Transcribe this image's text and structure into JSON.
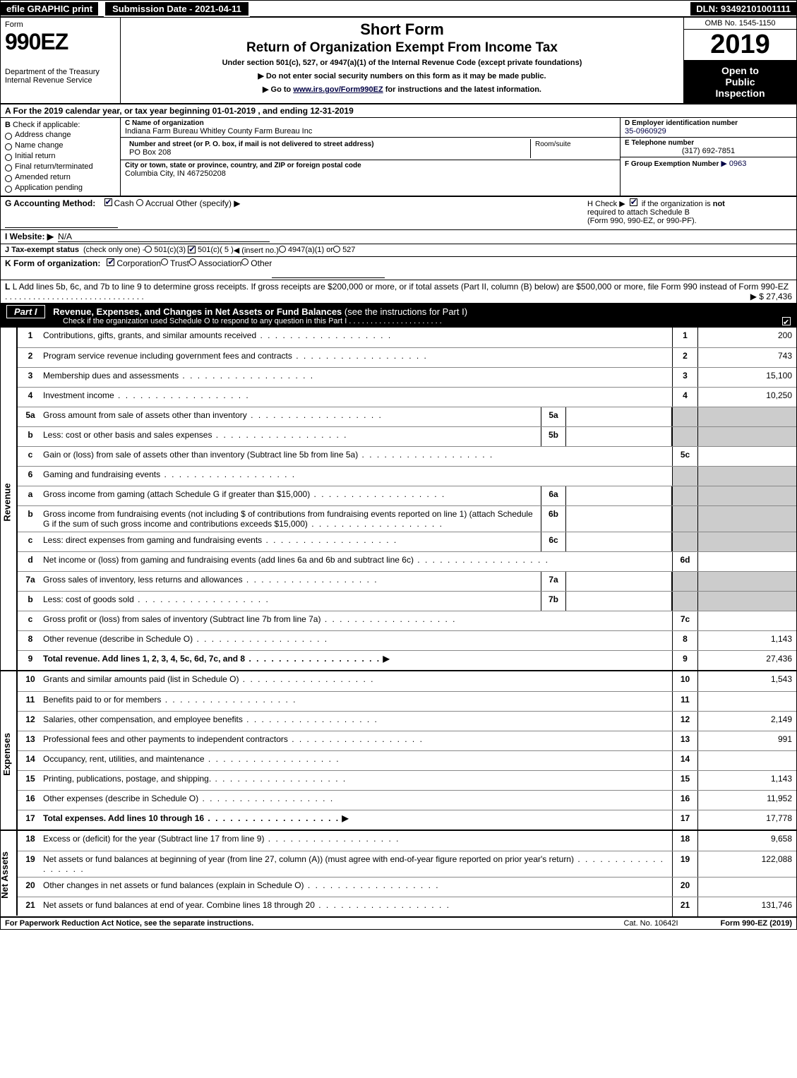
{
  "topbar": {
    "efile": "efile GRAPHIC print",
    "submission_label": "Submission Date - 2021-04-11",
    "dln": "DLN: 93492101001111"
  },
  "header": {
    "form_word": "Form",
    "form_num": "990EZ",
    "dept": "Department of the Treasury",
    "irs": "Internal Revenue Service",
    "short_form": "Short Form",
    "return": "Return of Organization Exempt From Income Tax",
    "under": "Under section 501(c), 527, or 4947(a)(1) of the Internal Revenue Code (except private foundations)",
    "arrow1": "▶ Do not enter social security numbers on this form as it may be made public.",
    "arrow2_prefix": "▶ Go to ",
    "arrow2_link": "www.irs.gov/Form990EZ",
    "arrow2_suffix": " for instructions and the latest information.",
    "omb": "OMB No. 1545-1150",
    "year": "2019",
    "open1": "Open to",
    "open2": "Public",
    "open3": "Inspection"
  },
  "row_a": "A For the 2019 calendar year, or tax year beginning 01-01-2019 , and ending 12-31-2019",
  "col_b": {
    "header": "B",
    "check_if": "Check if applicable:",
    "items": [
      "Address change",
      "Name change",
      "Initial return",
      "Final return/terminated",
      "Amended return",
      "Application pending"
    ]
  },
  "col_c": {
    "name_label": "C Name of organization",
    "name": "Indiana Farm Bureau Whitley County Farm Bureau Inc",
    "addr_label": "Number and street (or P. O. box, if mail is not delivered to street address)",
    "addr": "PO Box 208",
    "room_label": "Room/suite",
    "city_label": "City or town, state or province, country, and ZIP or foreign postal code",
    "city": "Columbia City, IN  467250208"
  },
  "col_d": {
    "ein_label": "D Employer identification number",
    "ein": "35-0960929",
    "tel_label": "E Telephone number",
    "tel": "(317) 692-7851",
    "grp_label": "F Group Exemption Number",
    "grp": "▶ 0963"
  },
  "row_g": {
    "label": "G Accounting Method:",
    "cash": "Cash",
    "accrual": "Accrual",
    "other": "Other (specify) ▶"
  },
  "row_h": {
    "text1": "H  Check ▶",
    "text2": "if the organization is",
    "text3": "not",
    "text4": "required to attach Schedule B",
    "text5": "(Form 990, 990-EZ, or 990-PF)."
  },
  "row_i": {
    "label": "I Website: ▶",
    "val": "N/A"
  },
  "row_j": {
    "label": "J Tax-exempt status",
    "small": "(check only one) -",
    "o1": "501(c)(3)",
    "o2": "501(c)( 5 )",
    "o2_insert": "◀ (insert no.)",
    "o3": "4947(a)(1) or",
    "o4": "527"
  },
  "row_k": {
    "label": "K Form of organization:",
    "o1": "Corporation",
    "o2": "Trust",
    "o3": "Association",
    "o4": "Other"
  },
  "row_l": {
    "text": "L Add lines 5b, 6c, and 7b to line 9 to determine gross receipts. If gross receipts are $200,000 or more, or if total assets (Part II, column (B) below) are $500,000 or more, file Form 990 instead of Form 990-EZ",
    "arrow": "▶ $ 27,436"
  },
  "part1": {
    "num": "Part I",
    "title": "Revenue, Expenses, and Changes in Net Assets or Fund Balances",
    "sub": "(see the instructions for Part I)",
    "check": "Check if the organization used Schedule O to respond to any question in this Part I"
  },
  "revenue_lines": [
    {
      "n": "1",
      "d": "Contributions, gifts, grants, and similar amounts received",
      "rn": "1",
      "rv": "200"
    },
    {
      "n": "2",
      "d": "Program service revenue including government fees and contracts",
      "rn": "2",
      "rv": "743"
    },
    {
      "n": "3",
      "d": "Membership dues and assessments",
      "rn": "3",
      "rv": "15,100"
    },
    {
      "n": "4",
      "d": "Investment income",
      "rn": "4",
      "rv": "10,250"
    },
    {
      "n": "5a",
      "d": "Gross amount from sale of assets other than inventory",
      "mn": "5a",
      "shade_r": true
    },
    {
      "n": "b",
      "d": "Less: cost or other basis and sales expenses",
      "mn": "5b",
      "shade_r": true
    },
    {
      "n": "c",
      "d": "Gain or (loss) from sale of assets other than inventory (Subtract line 5b from line 5a)",
      "rn": "5c",
      "rv": ""
    },
    {
      "n": "6",
      "d": "Gaming and fundraising events",
      "shade_r": true,
      "shade_mid": true
    },
    {
      "n": "a",
      "d": "Gross income from gaming (attach Schedule G if greater than $15,000)",
      "mn": "6a",
      "shade_r": true
    },
    {
      "n": "b",
      "d": "Gross income from fundraising events (not including $                      of contributions from fundraising events reported on line 1) (attach Schedule G if the sum of such gross income and contributions exceeds $15,000)",
      "mn": "6b",
      "shade_r": true
    },
    {
      "n": "c",
      "d": "Less: direct expenses from gaming and fundraising events",
      "mn": "6c",
      "shade_r": true
    },
    {
      "n": "d",
      "d": "Net income or (loss) from gaming and fundraising events (add lines 6a and 6b and subtract line 6c)",
      "rn": "6d",
      "rv": ""
    },
    {
      "n": "7a",
      "d": "Gross sales of inventory, less returns and allowances",
      "mn": "7a",
      "shade_r": true
    },
    {
      "n": "b",
      "d": "Less: cost of goods sold",
      "mn": "7b",
      "shade_r": true
    },
    {
      "n": "c",
      "d": "Gross profit or (loss) from sales of inventory (Subtract line 7b from line 7a)",
      "rn": "7c",
      "rv": ""
    },
    {
      "n": "8",
      "d": "Other revenue (describe in Schedule O)",
      "rn": "8",
      "rv": "1,143"
    },
    {
      "n": "9",
      "d": "Total revenue. Add lines 1, 2, 3, 4, 5c, 6d, 7c, and 8",
      "rn": "9",
      "rv": "27,436",
      "bold": true,
      "arrow": true
    }
  ],
  "expense_lines": [
    {
      "n": "10",
      "d": "Grants and similar amounts paid (list in Schedule O)",
      "rn": "10",
      "rv": "1,543"
    },
    {
      "n": "11",
      "d": "Benefits paid to or for members",
      "rn": "11",
      "rv": ""
    },
    {
      "n": "12",
      "d": "Salaries, other compensation, and employee benefits",
      "rn": "12",
      "rv": "2,149"
    },
    {
      "n": "13",
      "d": "Professional fees and other payments to independent contractors",
      "rn": "13",
      "rv": "991"
    },
    {
      "n": "14",
      "d": "Occupancy, rent, utilities, and maintenance",
      "rn": "14",
      "rv": ""
    },
    {
      "n": "15",
      "d": "Printing, publications, postage, and shipping.",
      "rn": "15",
      "rv": "1,143"
    },
    {
      "n": "16",
      "d": "Other expenses (describe in Schedule O)",
      "rn": "16",
      "rv": "11,952"
    },
    {
      "n": "17",
      "d": "Total expenses. Add lines 10 through 16",
      "rn": "17",
      "rv": "17,778",
      "bold": true,
      "arrow": true
    }
  ],
  "netasset_lines": [
    {
      "n": "18",
      "d": "Excess or (deficit) for the year (Subtract line 17 from line 9)",
      "rn": "18",
      "rv": "9,658"
    },
    {
      "n": "19",
      "d": "Net assets or fund balances at beginning of year (from line 27, column (A)) (must agree with end-of-year figure reported on prior year's return)",
      "rn": "19",
      "rv": "122,088"
    },
    {
      "n": "20",
      "d": "Other changes in net assets or fund balances (explain in Schedule O)",
      "rn": "20",
      "rv": ""
    },
    {
      "n": "21",
      "d": "Net assets or fund balances at end of year. Combine lines 18 through 20",
      "rn": "21",
      "rv": "131,746"
    }
  ],
  "vlabels": {
    "revenue": "Revenue",
    "expenses": "Expenses",
    "netassets": "Net Assets"
  },
  "footer": {
    "paperwork": "For Paperwork Reduction Act Notice, see the separate instructions.",
    "cat": "Cat. No. 10642I",
    "form": "Form 990-EZ (2019)"
  },
  "colors": {
    "black": "#000000",
    "white": "#ffffff",
    "shade": "#cccccc",
    "link": "#000044"
  }
}
